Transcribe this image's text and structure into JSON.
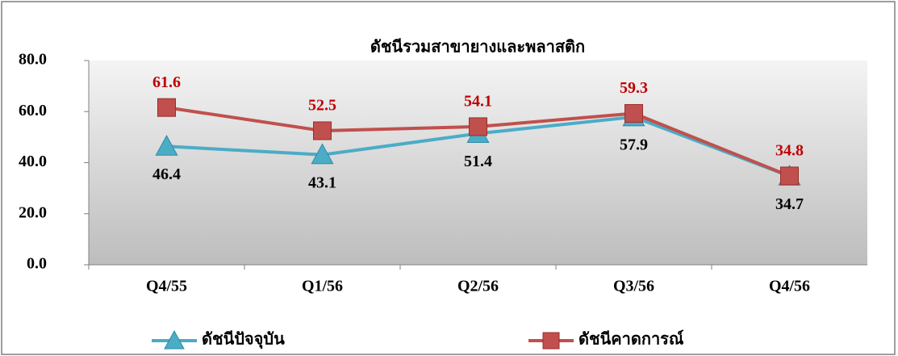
{
  "chart_data": {
    "type": "line",
    "title": "ดัชนีรวมสาขายางและพลาสติก",
    "categories": [
      "Q4/55",
      "Q1/56",
      "Q2/56",
      "Q3/56",
      "Q4/56"
    ],
    "series": [
      {
        "name": "ดัชนีปัจจุบัน",
        "color": "#4bacc6",
        "marker": "triangle",
        "values": [
          46.4,
          43.1,
          51.4,
          57.9,
          34.7
        ]
      },
      {
        "name": "ดัชนีคาดการณ์",
        "color": "#c0504d",
        "marker": "square",
        "values": [
          61.6,
          52.5,
          54.1,
          59.3,
          34.8
        ]
      }
    ],
    "ylim": [
      0,
      80
    ],
    "yticks": [
      {
        "value": 0,
        "label": "0.0"
      },
      {
        "value": 20,
        "label": "20.0"
      },
      {
        "value": 40,
        "label": "40.0"
      },
      {
        "value": 60,
        "label": "60.0"
      },
      {
        "value": 80,
        "label": "80.0"
      }
    ],
    "grid": false,
    "legend": "bottom"
  }
}
